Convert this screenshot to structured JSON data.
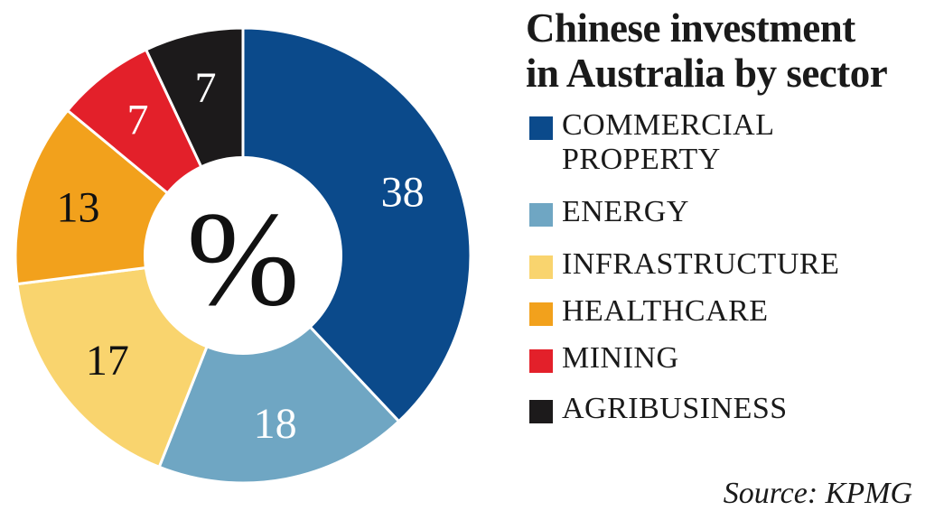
{
  "chart_data": {
    "type": "pie",
    "style": "donut",
    "title_lines": [
      "Chinese investment",
      "in Australia by sector"
    ],
    "unit_symbol": "%",
    "categories": [
      "COMMERCIAL\nPROPERTY",
      "ENERGY",
      "INFRASTRUCTURE",
      "HEALTHCARE",
      "MINING",
      "AGRIBUSINESS"
    ],
    "values": [
      38,
      18,
      17,
      13,
      7,
      7
    ],
    "colors": [
      "#0b4a8b",
      "#6fa6c3",
      "#f9d46e",
      "#f2a11c",
      "#e3202a",
      "#1c1a1b"
    ],
    "label_colors": [
      "#ffffff",
      "#ffffff",
      "#111111",
      "#111111",
      "#ffffff",
      "#ffffff"
    ],
    "legend_position": "right",
    "source": "Source: KPMG"
  }
}
